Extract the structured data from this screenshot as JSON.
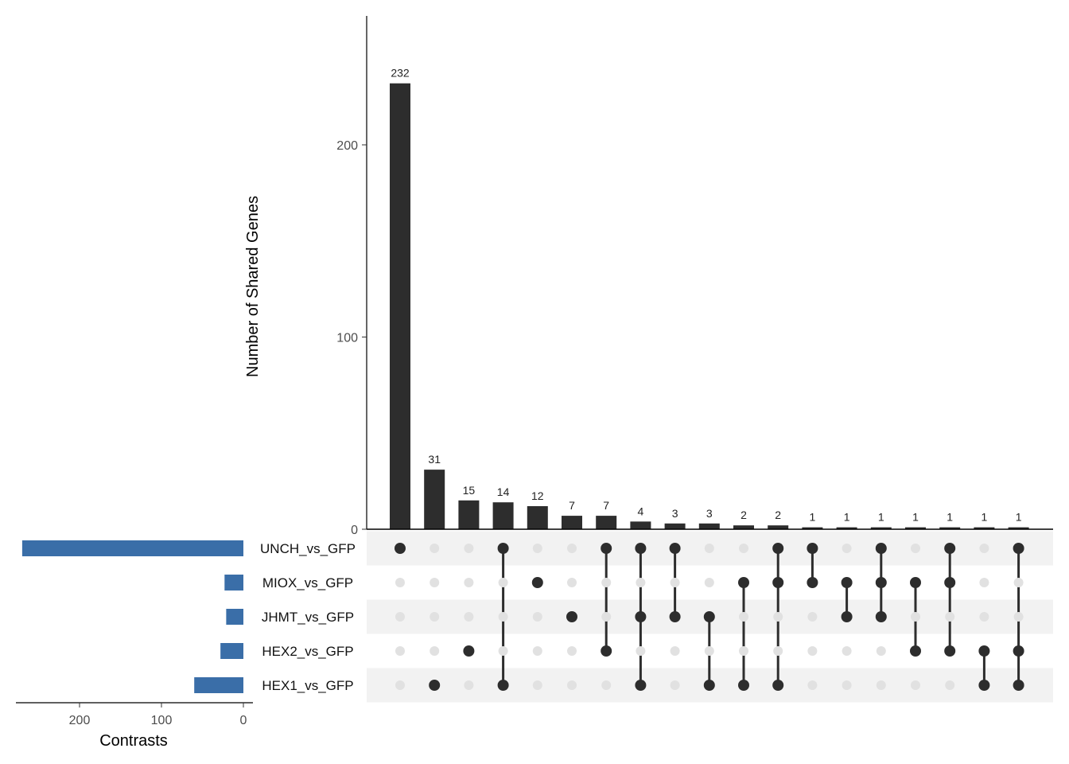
{
  "chart_data": {
    "type": "upset",
    "ylabel": "Number of Shared Genes",
    "set_size_xlabel": "Contrasts",
    "ylim": [
      0,
      265
    ],
    "yticks": [
      0,
      100,
      200
    ],
    "set_size_ticks": [
      200,
      100,
      0
    ],
    "set_size_lim": [
      0,
      280
    ],
    "sets": [
      "UNCH_vs_GFP",
      "MIOX_vs_GFP",
      "JHMT_vs_GFP",
      "HEX2_vs_GFP",
      "HEX1_vs_GFP"
    ],
    "set_sizes": [
      270,
      23,
      21,
      28,
      60
    ],
    "intersections": [
      {
        "value": 232,
        "sets": [
          "UNCH_vs_GFP"
        ]
      },
      {
        "value": 31,
        "sets": [
          "HEX1_vs_GFP"
        ]
      },
      {
        "value": 15,
        "sets": [
          "HEX2_vs_GFP"
        ]
      },
      {
        "value": 14,
        "sets": [
          "UNCH_vs_GFP",
          "HEX1_vs_GFP"
        ]
      },
      {
        "value": 12,
        "sets": [
          "MIOX_vs_GFP"
        ]
      },
      {
        "value": 7,
        "sets": [
          "JHMT_vs_GFP"
        ]
      },
      {
        "value": 7,
        "sets": [
          "UNCH_vs_GFP",
          "HEX2_vs_GFP"
        ]
      },
      {
        "value": 4,
        "sets": [
          "UNCH_vs_GFP",
          "JHMT_vs_GFP",
          "HEX1_vs_GFP"
        ]
      },
      {
        "value": 3,
        "sets": [
          "UNCH_vs_GFP",
          "JHMT_vs_GFP"
        ]
      },
      {
        "value": 3,
        "sets": [
          "JHMT_vs_GFP",
          "HEX1_vs_GFP"
        ]
      },
      {
        "value": 2,
        "sets": [
          "MIOX_vs_GFP",
          "HEX1_vs_GFP"
        ]
      },
      {
        "value": 2,
        "sets": [
          "UNCH_vs_GFP",
          "MIOX_vs_GFP",
          "HEX1_vs_GFP"
        ]
      },
      {
        "value": 1,
        "sets": [
          "UNCH_vs_GFP",
          "MIOX_vs_GFP"
        ]
      },
      {
        "value": 1,
        "sets": [
          "MIOX_vs_GFP",
          "JHMT_vs_GFP"
        ]
      },
      {
        "value": 1,
        "sets": [
          "UNCH_vs_GFP",
          "MIOX_vs_GFP",
          "JHMT_vs_GFP"
        ]
      },
      {
        "value": 1,
        "sets": [
          "MIOX_vs_GFP",
          "HEX2_vs_GFP"
        ]
      },
      {
        "value": 1,
        "sets": [
          "UNCH_vs_GFP",
          "MIOX_vs_GFP",
          "HEX2_vs_GFP"
        ]
      },
      {
        "value": 1,
        "sets": [
          "HEX2_vs_GFP",
          "HEX1_vs_GFP"
        ]
      },
      {
        "value": 1,
        "sets": [
          "UNCH_vs_GFP",
          "HEX2_vs_GFP",
          "HEX1_vs_GFP"
        ]
      }
    ],
    "colors": {
      "bar": "#2d2d2d",
      "set_bar": "#3a6ea8",
      "dot_active": "#2d2d2d",
      "dot_inactive": "#e1e1e1",
      "stripe": "#f2f2f2"
    }
  }
}
